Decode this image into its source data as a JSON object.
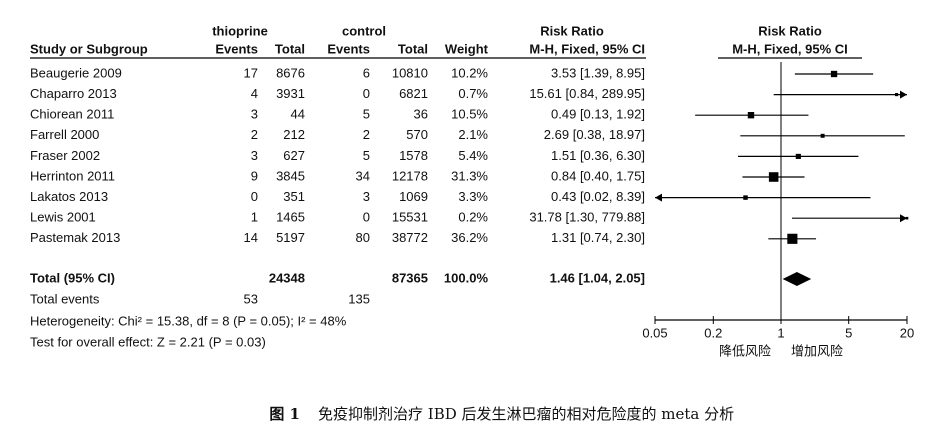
{
  "chart_data": {
    "type": "forest",
    "group_headers": {
      "exp": "thioprine",
      "ctl": "control",
      "ci": "Risk Ratio",
      "plot": "Risk Ratio"
    },
    "columns": {
      "study": "Study or Subgroup",
      "events1": "Events",
      "total1": "Total",
      "events2": "Events",
      "total2": "Total",
      "weight": "Weight",
      "ci": "M-H, Fixed, 95% CI",
      "plot": "M-H, Fixed, 95% CI"
    },
    "rows": [
      {
        "study": "Beaugerie 2009",
        "events1": 17,
        "total1": 8676,
        "events2": 6,
        "total2": 10810,
        "weight": 10.2,
        "weight_label": "10.2%",
        "rr": 3.53,
        "lo": 1.39,
        "hi": 8.95,
        "ci_label": "3.53 [1.39, 8.95]"
      },
      {
        "study": "Chaparro 2013",
        "events1": 4,
        "total1": 3931,
        "events2": 0,
        "total2": 6821,
        "weight": 0.7,
        "weight_label": "0.7%",
        "rr": 15.61,
        "lo": 0.84,
        "hi": 289.95,
        "ci_label": "15.61 [0.84, 289.95]"
      },
      {
        "study": "Chiorean 2011",
        "events1": 3,
        "total1": 44,
        "events2": 5,
        "total2": 36,
        "weight": 10.5,
        "weight_label": "10.5%",
        "rr": 0.49,
        "lo": 0.13,
        "hi": 1.92,
        "ci_label": "0.49 [0.13, 1.92]"
      },
      {
        "study": "Farrell 2000",
        "events1": 2,
        "total1": 212,
        "events2": 2,
        "total2": 570,
        "weight": 2.1,
        "weight_label": "2.1%",
        "rr": 2.69,
        "lo": 0.38,
        "hi": 18.97,
        "ci_label": "2.69 [0.38, 18.97]"
      },
      {
        "study": "Fraser 2002",
        "events1": 3,
        "total1": 627,
        "events2": 5,
        "total2": 1578,
        "weight": 5.4,
        "weight_label": "5.4%",
        "rr": 1.51,
        "lo": 0.36,
        "hi": 6.3,
        "ci_label": "1.51 [0.36, 6.30]"
      },
      {
        "study": "Herrinton 2011",
        "events1": 9,
        "total1": 3845,
        "events2": 34,
        "total2": 12178,
        "weight": 31.3,
        "weight_label": "31.3%",
        "rr": 0.84,
        "lo": 0.4,
        "hi": 1.75,
        "ci_label": "0.84 [0.40, 1.75]"
      },
      {
        "study": "Lakatos 2013",
        "events1": 0,
        "total1": 351,
        "events2": 3,
        "total2": 1069,
        "weight": 3.3,
        "weight_label": "3.3%",
        "rr": 0.43,
        "lo": 0.02,
        "hi": 8.39,
        "ci_label": "0.43 [0.02, 8.39]"
      },
      {
        "study": "Lewis 2001",
        "events1": 1,
        "total1": 1465,
        "events2": 0,
        "total2": 15531,
        "weight": 0.2,
        "weight_label": "0.2%",
        "rr": 31.78,
        "lo": 1.3,
        "hi": 779.88,
        "ci_label": "31.78 [1.30, 779.88]"
      },
      {
        "study": "Pastemak 2013",
        "events1": 14,
        "total1": 5197,
        "events2": 80,
        "total2": 38772,
        "weight": 36.2,
        "weight_label": "36.2%",
        "rr": 1.31,
        "lo": 0.74,
        "hi": 2.3,
        "ci_label": "1.31 [0.74, 2.30]"
      }
    ],
    "total": {
      "study": "Total (95% CI)",
      "total1": 24348,
      "total2": 87365,
      "weight": 100.0,
      "weight_label": "100.0%",
      "rr": 1.46,
      "lo": 1.04,
      "hi": 2.05,
      "ci_label": "1.46 [1.04, 2.05]"
    },
    "total_events": {
      "study": "Total events",
      "events1": 53,
      "events2": 135
    },
    "heterogeneity": "Heterogeneity: Chi² = 15.38, df = 8 (P = 0.05); I² = 48%",
    "overall": "Test for overall effect: Z = 2.21 (P = 0.03)",
    "xlim": [
      0.05,
      20
    ],
    "xticks": [
      0.05,
      0.2,
      1,
      5,
      20
    ],
    "log": true,
    "axis_labels": {
      "left": "降低风险",
      "right": "增加风险"
    },
    "color": "#000000"
  },
  "caption": {
    "label": "图 1",
    "text": "免疫抑制剂治疗 IBD 后发生淋巴瘤的相对危险度的 meta 分析"
  }
}
